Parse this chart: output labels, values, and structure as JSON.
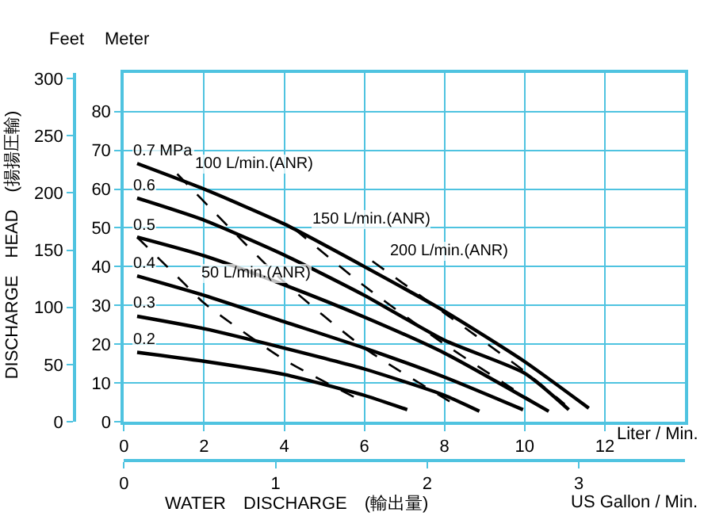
{
  "chart_data": {
    "type": "line",
    "xlabel": "Liter / Min.",
    "x2label": "US Gallon / Min.",
    "ylabel": "Meter",
    "y2label": "Feet",
    "xlim": [
      0,
      14
    ],
    "xticks": [
      0,
      2,
      4,
      6,
      8,
      10,
      12
    ],
    "x2lim": [
      0,
      3.7
    ],
    "x2ticks": [
      0,
      1,
      2,
      3
    ],
    "ylim": [
      0,
      90
    ],
    "yticks": [
      0,
      10,
      20,
      30,
      40,
      50,
      60,
      70,
      80
    ],
    "y2lim": [
      0,
      305
    ],
    "y2ticks": [
      0,
      50,
      100,
      150,
      200,
      250,
      300
    ],
    "grid": true,
    "marker": "none",
    "series": [
      {
        "color": "#000000",
        "line_style": "solid",
        "x": [
          0.33,
          2,
          4,
          6,
          8,
          10,
          11.6
        ],
        "values": [
          66.6,
          60,
          51,
          40,
          28.5,
          15.5,
          3.5
        ]
      },
      {
        "color": "#000000",
        "line_style": "solid",
        "x": [
          0.33,
          2,
          4,
          6,
          8,
          10,
          11.1
        ],
        "values": [
          57.7,
          52,
          43,
          32.6,
          21,
          12.5,
          3.1
        ]
      },
      {
        "color": "#000000",
        "line_style": "solid",
        "x": [
          0.33,
          2,
          4,
          6,
          8,
          10.6
        ],
        "values": [
          47.6,
          42.8,
          35.3,
          27,
          17.7,
          2.7
        ]
      },
      {
        "color": "#000000",
        "line_style": "solid",
        "x": [
          0.33,
          2,
          4,
          6,
          8,
          9.96
        ],
        "values": [
          37.6,
          32.6,
          25.8,
          19,
          11.5,
          3.1
        ]
      },
      {
        "color": "#000000",
        "line_style": "solid",
        "x": [
          0.33,
          2,
          4,
          6,
          8,
          8.87
        ],
        "values": [
          27.2,
          24,
          19,
          13.6,
          6.8,
          2.7
        ]
      },
      {
        "color": "#000000",
        "line_style": "solid",
        "x": [
          0.33,
          2,
          4,
          6,
          7.07
        ],
        "values": [
          17.9,
          15.6,
          12.2,
          6.8,
          3.1
        ]
      },
      {
        "color": "#000000",
        "line_style": "dashed",
        "x": [
          0.33,
          1.5,
          2,
          4,
          6
        ],
        "values": [
          47.6,
          35.7,
          30.6,
          16,
          5
        ]
      },
      {
        "color": "#000000",
        "line_style": "dashed",
        "x": [
          1.33,
          4,
          6,
          8.33
        ],
        "values": [
          63.9,
          36,
          19,
          4
        ]
      },
      {
        "color": "#000000",
        "line_style": "dashed",
        "x": [
          4.27,
          6,
          8,
          10.3
        ],
        "values": [
          49.6,
          35,
          20,
          4.5
        ]
      },
      {
        "color": "#000000",
        "line_style": "dashed",
        "x": [
          6.2,
          8,
          10,
          11
        ],
        "values": [
          41.4,
          28,
          13,
          4.5
        ]
      }
    ],
    "annotations": [
      {
        "text": "0.7 MPa",
        "x": 0.33,
        "y": 66.6
      },
      {
        "text": "0.6",
        "x": 0.33,
        "y": 57.7
      },
      {
        "text": "0.5",
        "x": 0.33,
        "y": 47.6
      },
      {
        "text": "0.4",
        "x": 0.33,
        "y": 37.6
      },
      {
        "text": "0.3",
        "x": 0.33,
        "y": 27.2
      },
      {
        "text": "0.2",
        "x": 0.33,
        "y": 17.9
      },
      {
        "text": "100 L/min.(ANR)",
        "x": 1.33,
        "y": 63.9
      },
      {
        "text": "150 L/min.(ANR)",
        "x": 4.27,
        "y": 49.6
      },
      {
        "text": "200 L/min.(ANR)",
        "x": 6.2,
        "y": 41.4
      },
      {
        "text": "50 L/min.(ANR)",
        "x": 1.5,
        "y": 35.7
      },
      "DISCHARGE　HEAD　(揚揚圧輸)",
      "WATER　DISCHARGE　(輸出量)"
    ]
  }
}
